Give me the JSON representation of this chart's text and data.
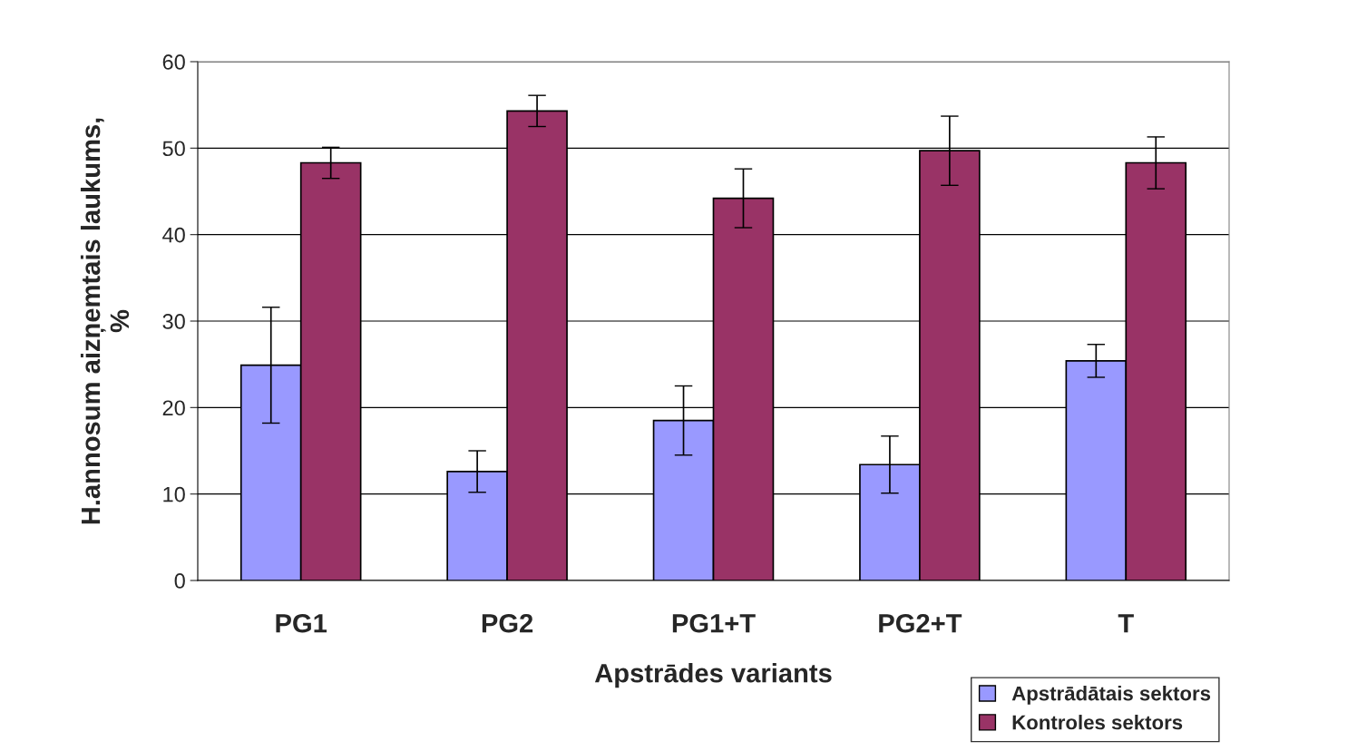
{
  "chart_data": {
    "type": "bar",
    "xlabel": "Apstrādes variants",
    "ylabel": "H.annosum aizņemtais laukums,\n%",
    "categories": [
      "PG1",
      "PG2",
      "PG1+T",
      "PG2+T",
      "T"
    ],
    "series": [
      {
        "name": "Apstrādātais sektors",
        "color": "#9999ff",
        "values": [
          24.9,
          12.6,
          18.5,
          13.4,
          25.4
        ],
        "errors": [
          6.7,
          2.4,
          4.0,
          3.3,
          1.9
        ]
      },
      {
        "name": "Kontroles sektors",
        "color": "#993366",
        "values": [
          48.3,
          54.3,
          44.2,
          49.7,
          48.3
        ],
        "errors": [
          1.8,
          1.8,
          3.4,
          4.0,
          3.0
        ]
      }
    ],
    "ylim": [
      0,
      60
    ],
    "yticks": [
      0,
      10,
      20,
      30,
      40,
      50,
      60
    ],
    "grid": "y",
    "legend": "bottom right"
  }
}
